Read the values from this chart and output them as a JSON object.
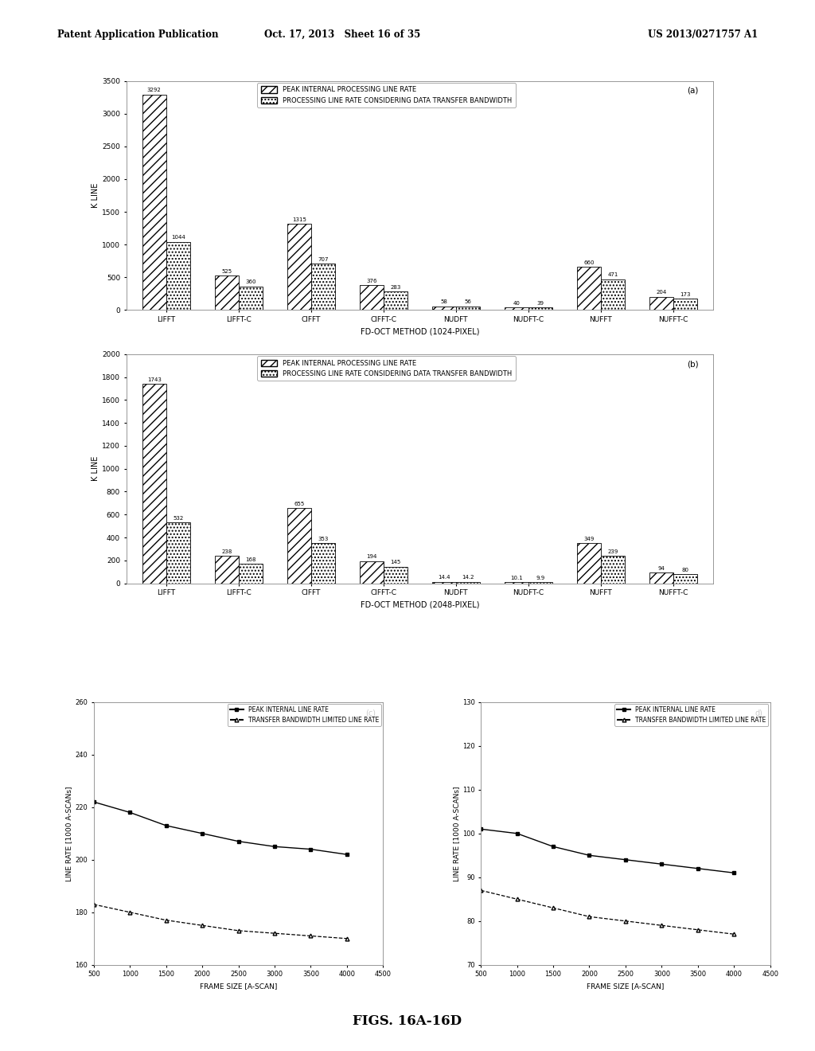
{
  "header_left": "Patent Application Publication",
  "header_center": "Oct. 17, 2013   Sheet 16 of 35",
  "header_right": "US 2013/0271757 A1",
  "footer": "FIGS. 16A-16D",
  "chart_a": {
    "label": "(a)",
    "categories": [
      "LIFFT",
      "LIFFT-C",
      "CIFFT",
      "CIFFT-C",
      "NUDFT",
      "NUDFT-C",
      "NUFFT",
      "NUFFT-C"
    ],
    "xlabel": "FD-OCT METHOD (1024-PIXEL)",
    "ylabel": "K LINE",
    "ylim": [
      0,
      3500
    ],
    "yticks": [
      0,
      500,
      1000,
      1500,
      2000,
      2500,
      3000,
      3500
    ],
    "bars_peak": [
      3292,
      525,
      1315,
      376,
      58,
      40,
      660,
      204
    ],
    "bars_transfer": [
      1044,
      360,
      707,
      283,
      56,
      39,
      471,
      173
    ],
    "labels_peak": [
      "3292",
      "525",
      "1315",
      "376",
      "58",
      "40",
      "660",
      "204"
    ],
    "labels_transfer": [
      "1044",
      "360",
      "707",
      "283",
      "56",
      "39",
      "471",
      "173"
    ],
    "legend1": "PEAK INTERNAL PROCESSING LINE RATE",
    "legend2": "PROCESSING LINE RATE CONSIDERING DATA TRANSFER BANDWIDTH"
  },
  "chart_b": {
    "label": "(b)",
    "categories": [
      "LIFFT",
      "LIFFT-C",
      "CIFFT",
      "CIFFT-C",
      "NUDFT",
      "NUDFT-C",
      "NUFFT",
      "NUFFT-C"
    ],
    "xlabel": "FD-OCT METHOD (2048-PIXEL)",
    "ylabel": "K LINE",
    "ylim": [
      0,
      2000
    ],
    "yticks": [
      0,
      200,
      400,
      600,
      800,
      1000,
      1200,
      1400,
      1600,
      1800,
      2000
    ],
    "bars_peak": [
      1743,
      238,
      655,
      194,
      14.4,
      10.1,
      349,
      94
    ],
    "bars_transfer": [
      532,
      168,
      353,
      145,
      14.2,
      9.9,
      239,
      80
    ],
    "labels_peak": [
      "1743",
      "238",
      "655",
      "194",
      "14.4",
      "10.1",
      "349",
      "94"
    ],
    "labels_transfer": [
      "532",
      "168",
      "353",
      "145",
      "14.2",
      "9.9",
      "239",
      "80"
    ],
    "legend1": "PEAK INTERNAL PROCESSING LINE RATE",
    "legend2": "PROCESSING LINE RATE CONSIDERING DATA TRANSFER BANDWIDTH"
  },
  "chart_c": {
    "label": "(c)",
    "xlabel": "FRAME SIZE [A-SCAN]",
    "ylabel": "LINE RATE [1000 A-SCANs]",
    "ylim": [
      160,
      260
    ],
    "yticks": [
      160,
      180,
      200,
      220,
      240,
      260
    ],
    "xlim": [
      500,
      4500
    ],
    "xticks": [
      500,
      1000,
      1500,
      2000,
      2500,
      3000,
      3500,
      4000,
      4500
    ],
    "peak_x": [
      500,
      1000,
      1500,
      2000,
      2500,
      3000,
      3500,
      4000
    ],
    "peak_y": [
      222,
      218,
      213,
      210,
      207,
      205,
      204,
      202
    ],
    "transfer_x": [
      500,
      1000,
      1500,
      2000,
      2500,
      3000,
      3500,
      4000
    ],
    "transfer_y": [
      183,
      180,
      177,
      175,
      173,
      172,
      171,
      170
    ],
    "legend1": "PEAK INTERNAL LINE RATE",
    "legend2": "TRANSFER BANDWIDTH LIMITED LINE RATE"
  },
  "chart_d": {
    "label": "d)",
    "xlabel": "FRAME SIZE [A-SCAN]",
    "ylabel": "LINE RATE [1000 A-SCANs]",
    "ylim": [
      70,
      130
    ],
    "yticks": [
      70,
      80,
      90,
      100,
      110,
      120,
      130
    ],
    "xlim": [
      500,
      4500
    ],
    "xticks": [
      500,
      1000,
      1500,
      2000,
      2500,
      3000,
      3500,
      4000,
      4500
    ],
    "peak_x": [
      500,
      1000,
      1500,
      2000,
      2500,
      3000,
      3500,
      4000
    ],
    "peak_y": [
      101,
      100,
      97,
      95,
      94,
      93,
      92,
      91
    ],
    "transfer_x": [
      500,
      1000,
      1500,
      2000,
      2500,
      3000,
      3500,
      4000
    ],
    "transfer_y": [
      87,
      85,
      83,
      81,
      80,
      79,
      78,
      77
    ],
    "legend1": "PEAK INTERNAL LINE RATE",
    "legend2": "TRANSFER BANDWIDTH LIMITED LINE RATE"
  },
  "bg_color": "#ffffff"
}
